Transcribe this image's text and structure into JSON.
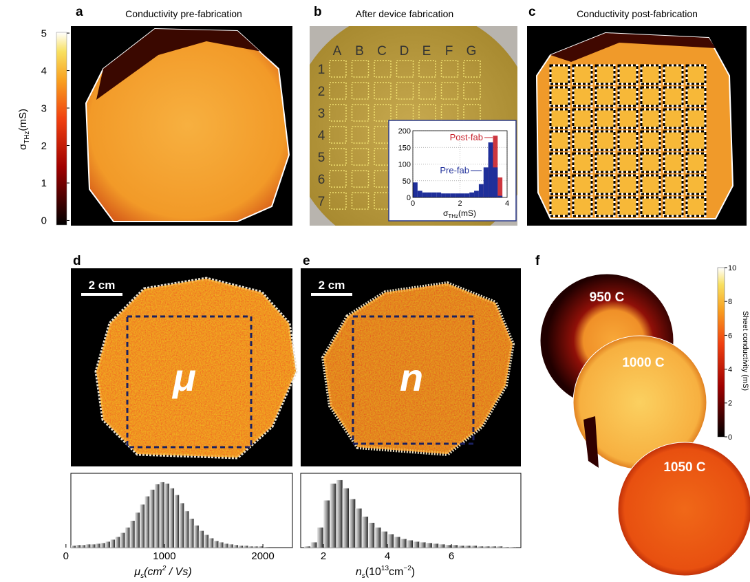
{
  "panel_a": {
    "label": "a",
    "title": "Conductivity pre-fabrication",
    "colorbar": {
      "label": {
        "symbol": "σ",
        "subscript": "THz",
        "unit": "(mS)"
      },
      "lim": [
        -0.12,
        5.02
      ],
      "ticks": [
        0,
        1,
        2,
        3,
        4,
        5
      ]
    }
  },
  "panel_b": {
    "label": "b",
    "title": "After device fabrication",
    "columns": [
      "A",
      "B",
      "C",
      "D",
      "E",
      "F",
      "G"
    ],
    "rows": [
      "1",
      "2",
      "3",
      "4",
      "5",
      "6",
      "7"
    ],
    "inset": {
      "type": "histogram",
      "xlim": [
        0,
        4
      ],
      "ylim": [
        0,
        200
      ],
      "xticks": [
        0,
        2,
        4
      ],
      "yticks": [
        0,
        50,
        100,
        150,
        200
      ],
      "xlabel": {
        "symbol": "σ",
        "subscript": "THz",
        "unit": "(mS)"
      },
      "bins": [
        0,
        0.2,
        0.4,
        0.6,
        0.8,
        1,
        1.2,
        1.4,
        1.6,
        1.8,
        2,
        2.2,
        2.4,
        2.6,
        2.8,
        3,
        3.2,
        3.4,
        3.6,
        3.8,
        4
      ],
      "series": [
        {
          "name": "Pre-fab",
          "color": "#1f2f9a",
          "values": [
            45,
            20,
            15,
            15,
            15,
            15,
            12,
            12,
            12,
            12,
            12,
            12,
            15,
            20,
            40,
            90,
            165,
            90,
            5,
            0
          ]
        },
        {
          "name": "Post-fab",
          "color": "#c8202a",
          "values": [
            0,
            0,
            0,
            0,
            0,
            0,
            0,
            0,
            0,
            0,
            0,
            0,
            0,
            0,
            10,
            40,
            120,
            185,
            60,
            0
          ]
        }
      ]
    }
  },
  "panel_c": {
    "label": "c",
    "title": "Conductivity post-fabrication"
  },
  "panel_d": {
    "label": "d",
    "scale_bar": "2 cm",
    "symbol": "μ",
    "histogram": {
      "type": "histogram",
      "bins": [
        0,
        50,
        100,
        150,
        200,
        250,
        300,
        350,
        400,
        450,
        500,
        550,
        600,
        650,
        700,
        750,
        800,
        850,
        900,
        950,
        1000,
        1050,
        1100,
        1150,
        1200,
        1250,
        1300,
        1350,
        1400,
        1450,
        1500,
        1550,
        1600,
        1650,
        1700,
        1750,
        1800,
        1850,
        1900,
        1950,
        2000,
        2050
      ],
      "values": [
        3,
        3,
        4,
        4,
        5,
        5,
        6,
        7,
        9,
        12,
        16,
        22,
        30,
        40,
        52,
        64,
        76,
        86,
        94,
        97,
        95,
        88,
        78,
        66,
        54,
        43,
        33,
        25,
        19,
        14,
        10,
        8,
        6,
        5,
        4,
        3,
        3,
        2,
        2,
        2,
        1
      ],
      "xlim": [
        50,
        2300
      ],
      "ylim": [
        0,
        110
      ],
      "xticks": [
        0,
        1000,
        2000
      ],
      "xlabel": {
        "symbol": "μ",
        "subscript": "s",
        "unit": "(cm",
        "power": "2",
        "rest": " / Vs)"
      }
    }
  },
  "panel_e": {
    "label": "e",
    "scale_bar": "2 cm",
    "symbol": "n",
    "histogram": {
      "type": "histogram",
      "bins": [
        1.4,
        1.6,
        1.8,
        2,
        2.2,
        2.4,
        2.6,
        2.8,
        3,
        3.2,
        3.4,
        3.6,
        3.8,
        4,
        4.2,
        4.4,
        4.6,
        4.8,
        5,
        5.2,
        5.4,
        5.6,
        5.8,
        6,
        6.2,
        6.4,
        6.6,
        6.8,
        7,
        7.2,
        7.4,
        7.6,
        7.8,
        8
      ],
      "values": [
        2,
        8,
        30,
        70,
        95,
        100,
        88,
        72,
        58,
        46,
        37,
        30,
        24,
        20,
        16,
        13,
        11,
        9,
        8,
        7,
        6,
        5,
        4,
        4,
        3,
        3,
        3,
        2,
        2,
        2,
        2,
        1,
        1
      ],
      "xlim": [
        1.29,
        8.17
      ],
      "ylim": [
        0,
        110
      ],
      "xticks": [
        2,
        4,
        6
      ],
      "xlabel": {
        "symbol": "n",
        "subscript": "s",
        "unit": "(10",
        "power": "13",
        "rest": "cm",
        "power2": "−2",
        "end": ")"
      }
    }
  },
  "panel_f": {
    "label": "f",
    "wafers": [
      "950 C",
      "1000 C",
      "1050 C"
    ],
    "colorbar": {
      "label": "Sheet conductivity (mS)",
      "lim": [
        0,
        10
      ],
      "ticks": [
        0,
        2,
        4,
        6,
        8,
        10
      ]
    }
  }
}
